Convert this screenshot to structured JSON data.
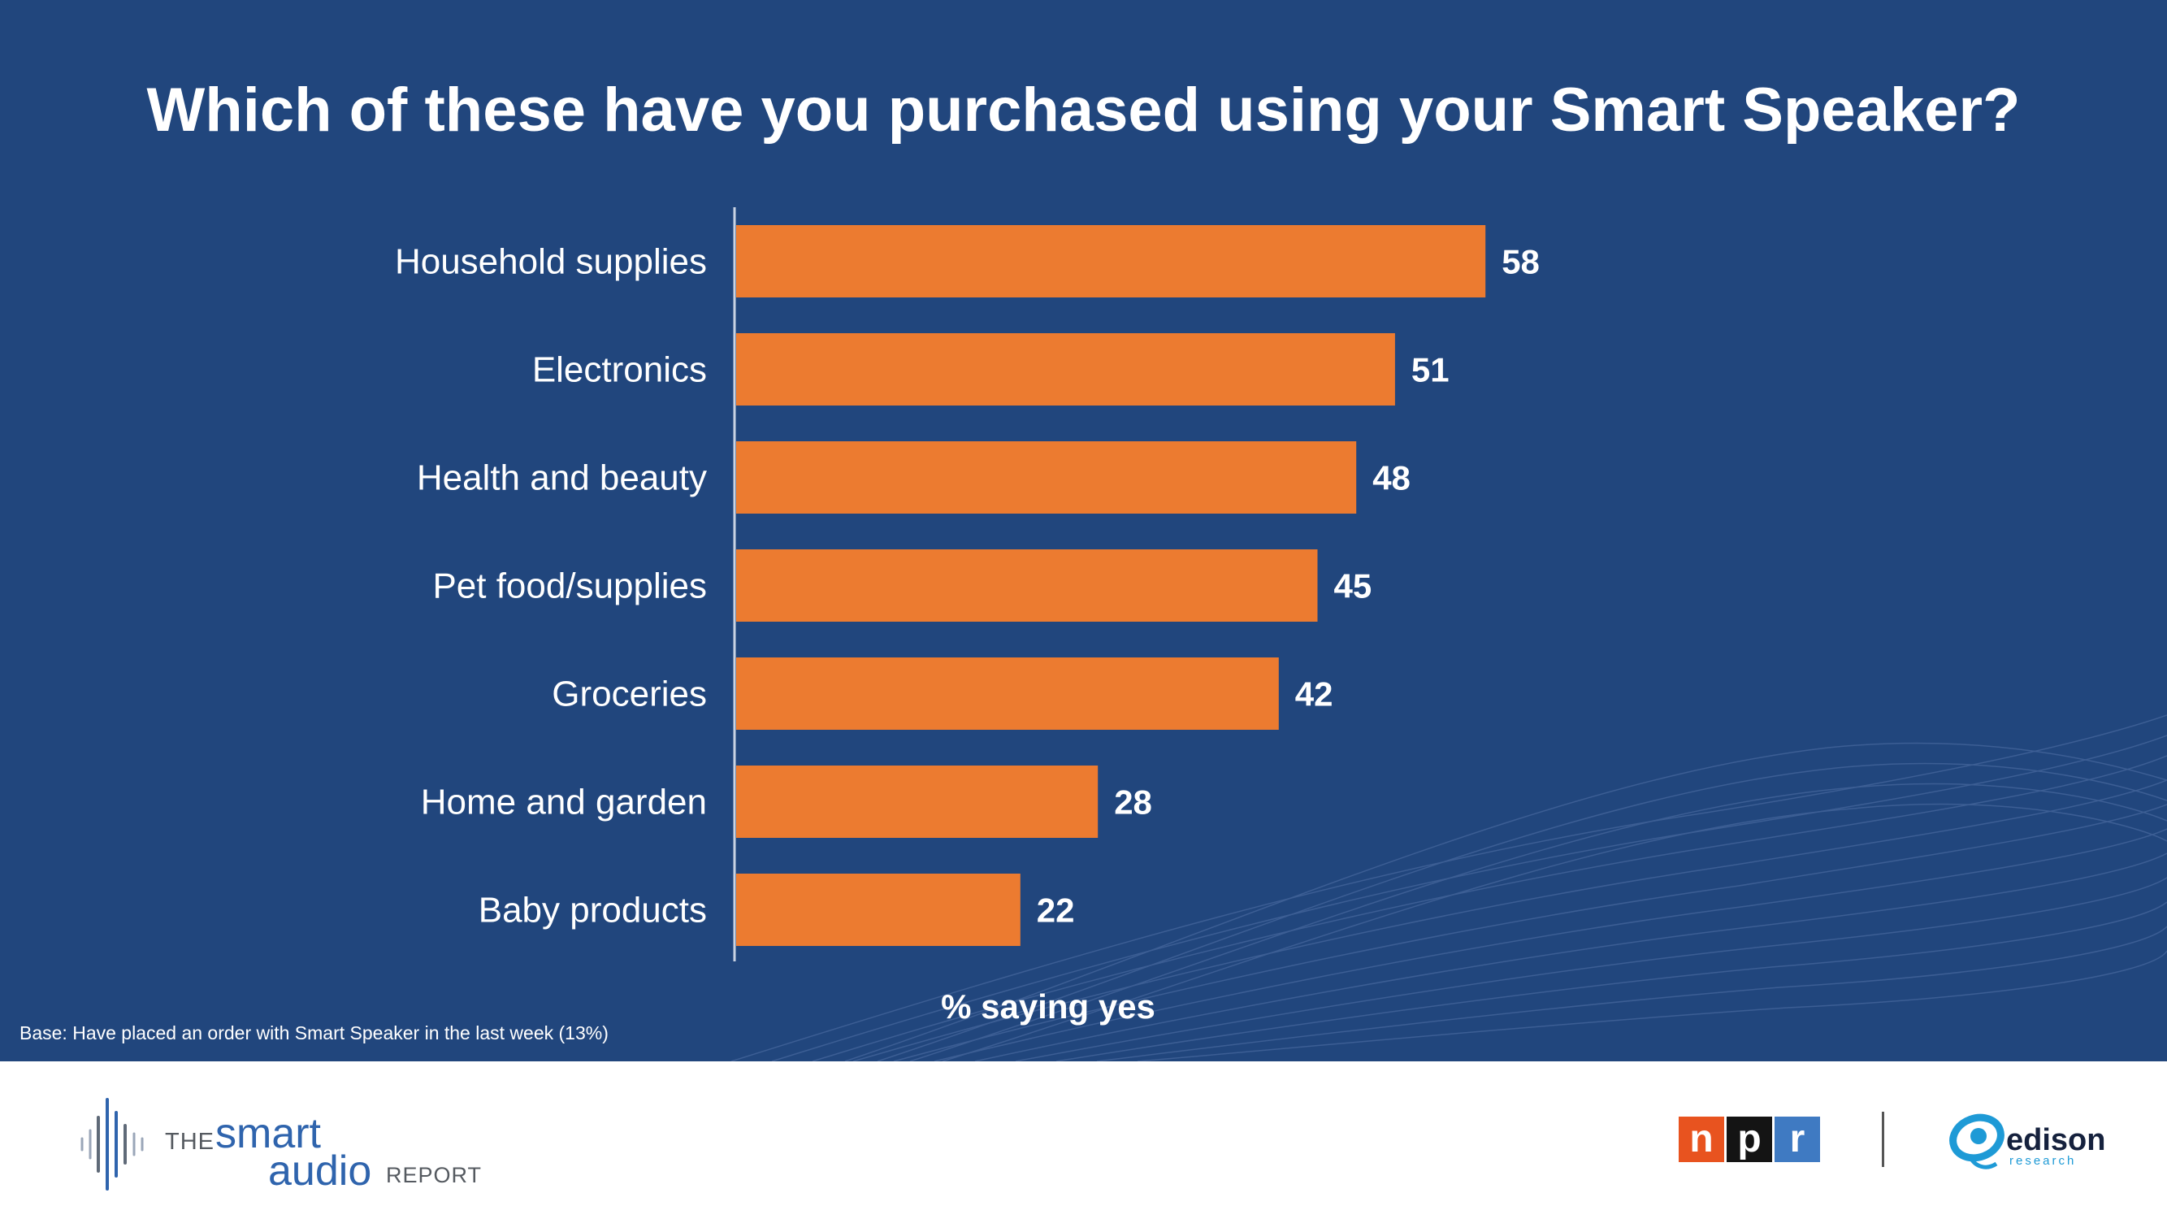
{
  "title": "Which of these have you purchased using your Smart Speaker?",
  "footnote": "Base: Have placed an order with Smart Speaker in the last week (13%)",
  "colors": {
    "background": "#21467d",
    "bar": "#ec7b30",
    "text": "#ffffff",
    "npr_n": "#e8531f",
    "npr_p": "#141414",
    "npr_r": "#3f7ac2",
    "edison_blue": "#1e9ad6"
  },
  "chart_data": {
    "type": "bar",
    "orientation": "horizontal",
    "categories": [
      "Household supplies",
      "Electronics",
      "Health and beauty",
      "Pet food/supplies",
      "Groceries",
      "Home and garden",
      "Baby products"
    ],
    "values": [
      58,
      51,
      48,
      45,
      42,
      28,
      22
    ],
    "xlabel": "% saying yes",
    "xlim": [
      0,
      100
    ],
    "grid": false,
    "data_labels": true
  },
  "branding": {
    "report_logo": {
      "the": "THE",
      "smart": "smart",
      "audio": "audio",
      "report": "REPORT"
    },
    "npr_letters": [
      "n",
      "p",
      "r"
    ],
    "edison": {
      "name": "edison",
      "sub": "research"
    }
  }
}
